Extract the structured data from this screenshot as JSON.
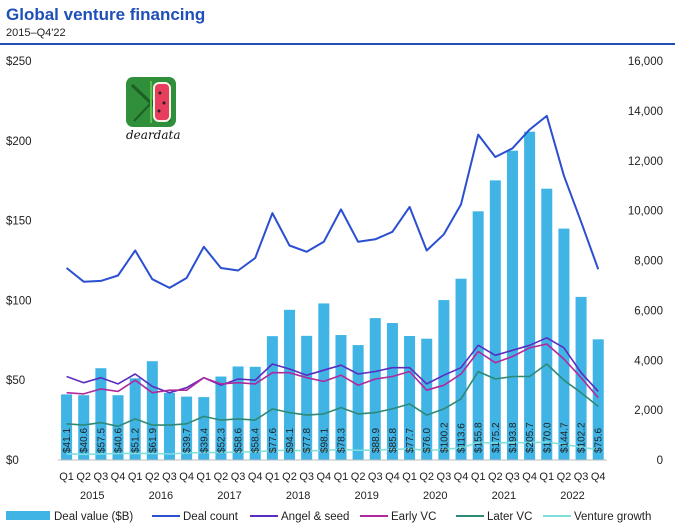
{
  "title": "Global venture financing",
  "subtitle": "2015–Q4'22",
  "watermark": "deardata",
  "chart_data": {
    "type": "bar",
    "quarter_labels": [
      "Q1",
      "Q2",
      "Q3",
      "Q4",
      "Q1",
      "Q2",
      "Q3",
      "Q4",
      "Q1",
      "Q2",
      "Q3",
      "Q4",
      "Q1",
      "Q2",
      "Q3",
      "Q4",
      "Q1",
      "Q2",
      "Q3",
      "Q4",
      "Q1",
      "Q2",
      "Q3",
      "Q4",
      "Q1",
      "Q2",
      "Q3",
      "Q4",
      "Q1",
      "Q2",
      "Q3",
      "Q4"
    ],
    "year_labels": [
      "2015",
      "2016",
      "2017",
      "2018",
      "2019",
      "2020",
      "2021",
      "2022"
    ],
    "left_axis": {
      "ticks": [
        "$0",
        "$50",
        "$100",
        "$150",
        "$200",
        "$250"
      ],
      "min": 0,
      "max": 250
    },
    "right_axis": {
      "ticks": [
        "0",
        "2,000",
        "4,000",
        "6,000",
        "8,000",
        "10,000",
        "12,000",
        "14,000",
        "16,000"
      ],
      "min": 0,
      "max": 16000
    },
    "deal_value": {
      "name": "Deal value ($B)",
      "color": "#3fb4e5",
      "values": [
        41.1,
        40.6,
        57.5,
        40.6,
        51.2,
        61.9,
        42,
        39.7,
        39.4,
        52.3,
        58.6,
        58.4,
        77.6,
        94.1,
        77.8,
        98.1,
        78.3,
        72,
        88.9,
        85.8,
        77.7,
        76.0,
        100.2,
        113.6,
        155.8,
        175.2,
        193.8,
        205.7,
        170.0,
        145,
        102.2,
        75.6
      ],
      "labels": [
        "$41.1",
        "$40.6",
        "$57.5",
        "$40.6",
        "$51.2",
        "$61.9",
        "",
        "$39.7",
        "$39.4",
        "$52.3",
        "$58.6",
        "$58.4",
        "$77.6",
        "$94.1",
        "$77.8",
        "$98.1",
        "$78.3",
        "",
        "$88.9",
        "$85.8",
        "$77.7",
        "$76.0",
        "$100.2",
        "$113.6",
        "$155.8",
        "$175.2",
        "$193.8",
        "$205.7",
        "$170.0",
        "$144.7",
        "$102.2",
        "$75.6"
      ]
    },
    "lines": [
      {
        "name": "Deal count",
        "color": "#2a4fd1",
        "values": [
          7700,
          7150,
          7180,
          7400,
          8400,
          7250,
          6900,
          7300,
          8550,
          7700,
          7600,
          8100,
          9900,
          8600,
          8350,
          8750,
          10050,
          8750,
          8850,
          9150,
          10150,
          8400,
          9050,
          10250,
          13050,
          12150,
          12500,
          13250,
          13800,
          11400,
          9550,
          7650
        ]
      },
      {
        "name": "Angel & seed",
        "color": "#5b2cc0",
        "values": [
          3350,
          3100,
          3300,
          3050,
          3450,
          2950,
          2700,
          2900,
          3300,
          3000,
          3250,
          3200,
          3850,
          3650,
          3400,
          3600,
          3800,
          3450,
          3550,
          3700,
          3700,
          3050,
          3400,
          3700,
          4600,
          4200,
          4400,
          4600,
          4900,
          4500,
          3500,
          2750
        ]
      },
      {
        "name": "Early VC",
        "color": "#b02a9e",
        "values": [
          2700,
          2650,
          2850,
          2750,
          3200,
          2700,
          2800,
          2800,
          3300,
          3050,
          3100,
          3050,
          3500,
          3500,
          3300,
          3150,
          3400,
          3000,
          3250,
          3350,
          3550,
          2800,
          3000,
          3450,
          4350,
          3900,
          4150,
          4500,
          4650,
          4050,
          3300,
          2500
        ]
      },
      {
        "name": "Later VC",
        "color": "#2e8a76",
        "values": [
          1450,
          1400,
          1500,
          1350,
          1650,
          1400,
          1400,
          1450,
          1750,
          1600,
          1650,
          1600,
          2050,
          1900,
          1800,
          1850,
          2100,
          1850,
          1900,
          2050,
          2250,
          1800,
          2050,
          2450,
          3550,
          3250,
          3350,
          3350,
          3850,
          3200,
          2700,
          2150
        ]
      },
      {
        "name": "Venture growth",
        "color": "#7fdede",
        "values": [
          250,
          230,
          240,
          260,
          270,
          260,
          240,
          280,
          300,
          300,
          320,
          330,
          380,
          390,
          370,
          380,
          420,
          390,
          400,
          420,
          450,
          380,
          420,
          490,
          700,
          680,
          700,
          690,
          720,
          620,
          520,
          410
        ]
      }
    ],
    "legend_position": "bottom",
    "grid": false
  }
}
